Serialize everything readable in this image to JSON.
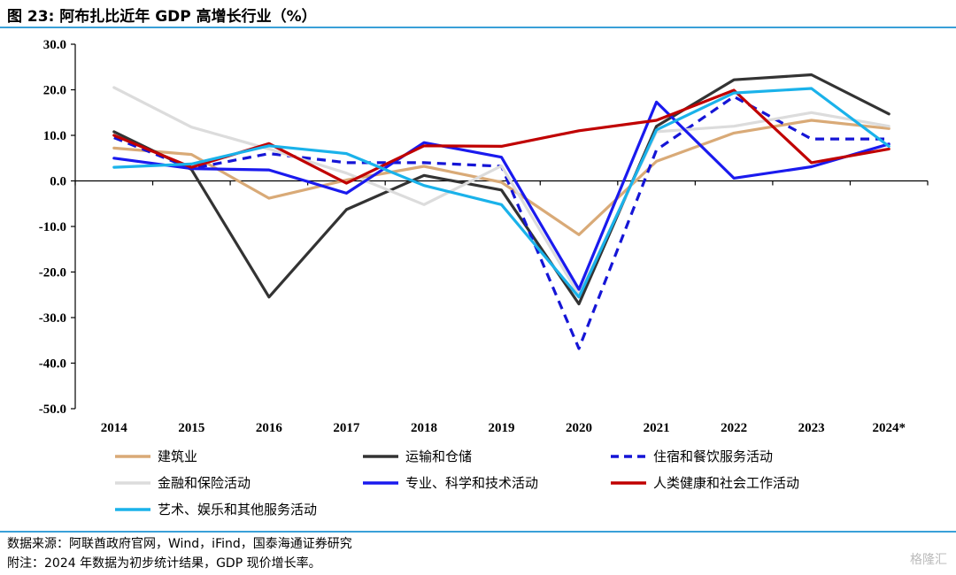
{
  "title": "图 23:  阿布扎比近年 GDP 高增长行业（%）",
  "footer": {
    "source": "数据来源：阿联酋政府官网，Wind，iFind，国泰海通证券研究",
    "note": "附注：2024 年数据为初步统计结果，GDP 现价增长率。",
    "watermark": "格隆汇"
  },
  "chart_data": {
    "type": "line",
    "title": "",
    "xlabel": "",
    "ylabel": "",
    "categories": [
      "2014",
      "2015",
      "2016",
      "2017",
      "2018",
      "2019",
      "2020",
      "2021",
      "2022",
      "2023",
      "2024*"
    ],
    "ylim": [
      -50,
      30
    ],
    "yticks": [
      30,
      20,
      10,
      0,
      -10,
      -20,
      -30,
      -40,
      -50
    ],
    "ytick_labels": [
      "30.0",
      "20.0",
      "10.0",
      "0.0",
      "-10.0",
      "-20.0",
      "-30.0",
      "-40.0",
      "-50.0"
    ],
    "grid": false,
    "legend_position": "bottom",
    "series": [
      {
        "name": "建筑业",
        "color": "#d9aa77",
        "dash": false,
        "values": [
          7.2,
          5.8,
          -3.8,
          0.2,
          3.2,
          -0.3,
          -11.8,
          4.3,
          10.5,
          13.3,
          11.5
        ]
      },
      {
        "name": "运输和仓储",
        "color": "#333333",
        "dash": false,
        "values": [
          10.8,
          2.5,
          -25.5,
          -6.3,
          1.2,
          -2.0,
          -27.0,
          12.0,
          22.2,
          23.3,
          14.7
        ]
      },
      {
        "name": "住宿和餐饮服务活动",
        "color": "#1515d6",
        "dash": true,
        "values": [
          9.5,
          2.7,
          6.0,
          4.0,
          4.0,
          3.2,
          -36.8,
          6.8,
          18.5,
          9.2,
          9.2
        ]
      },
      {
        "name": "金融和保险活动",
        "color": "#dcdcdc",
        "dash": false,
        "values": [
          20.5,
          11.8,
          7.0,
          1.7,
          -5.2,
          3.3,
          -25.0,
          10.8,
          12.0,
          15.0,
          12.0
        ]
      },
      {
        "name": "专业、科学和技术活动",
        "color": "#1a1aee",
        "dash": false,
        "values": [
          5.0,
          2.7,
          2.4,
          -2.7,
          8.4,
          5.2,
          -23.8,
          17.3,
          0.6,
          3.1,
          8.1
        ]
      },
      {
        "name": "人类健康和社会工作活动",
        "color": "#c00000",
        "dash": false,
        "values": [
          10.0,
          3.0,
          8.2,
          -0.5,
          7.7,
          7.6,
          11.0,
          13.3,
          19.9,
          4.0,
          7.0
        ]
      },
      {
        "name": "艺术、娱乐和其他服务活动",
        "color": "#1ab2ea",
        "dash": false,
        "values": [
          3.0,
          3.7,
          7.7,
          6.0,
          -1.0,
          -5.2,
          -25.5,
          11.2,
          19.3,
          20.3,
          7.6
        ]
      }
    ]
  }
}
